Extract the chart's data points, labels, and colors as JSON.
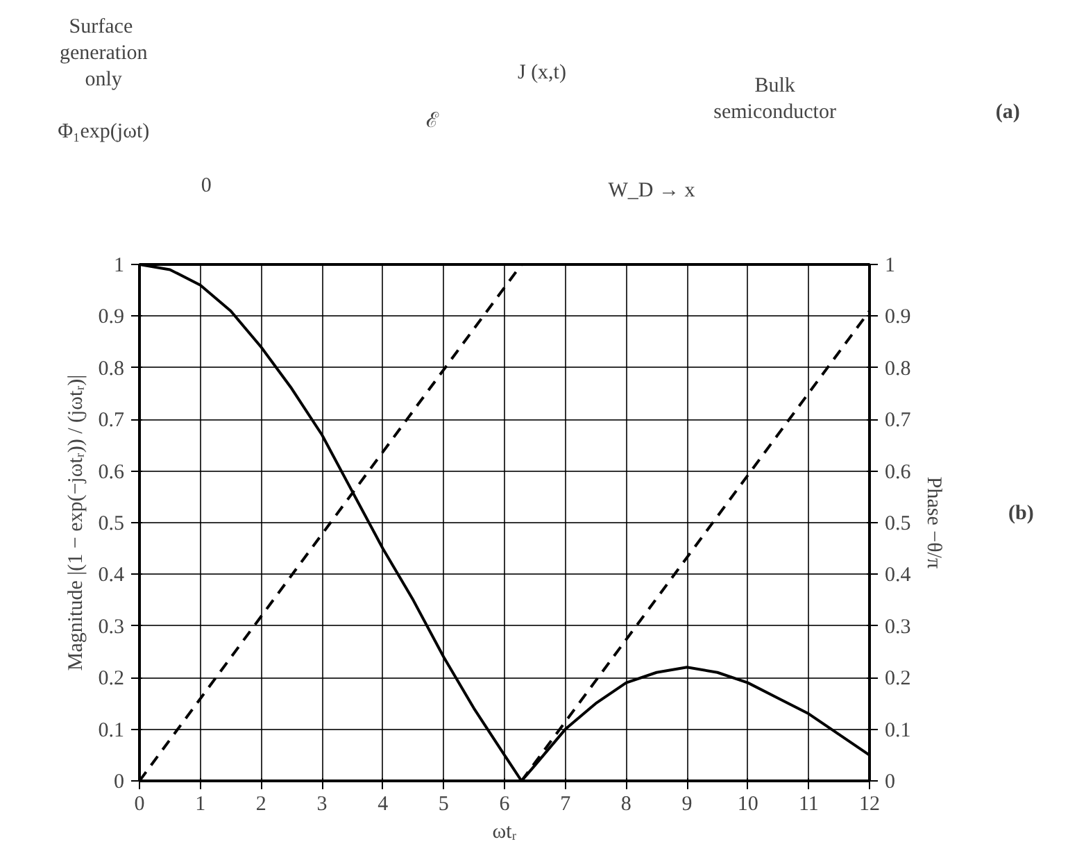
{
  "chart_data": [
    {
      "type": "other",
      "annotations": [
        "Surface generation only",
        "Φ₁exp(jωt)",
        "J (x,t)",
        "ℰ",
        "Bulk semiconductor",
        "0",
        "W_D → x",
        "(a)"
      ]
    },
    {
      "type": "line",
      "xlabel": "ωtᵣ",
      "ylabel": "Magnitude |(1 − exp(−jωtᵣ)) / (jωtᵣ)|",
      "y2label": "Phase −θ/π",
      "annotations": [
        "(b)"
      ],
      "xlim": [
        0,
        12
      ],
      "xticks": [
        0,
        1,
        2,
        3,
        4,
        5,
        6,
        7,
        8,
        9,
        10,
        11,
        12
      ],
      "ylim": [
        0,
        1
      ],
      "yticks": [
        0,
        0.1,
        0.2,
        0.3,
        0.4,
        0.5,
        0.6,
        0.7,
        0.8,
        0.9,
        1
      ],
      "y2lim": [
        0,
        1
      ],
      "y2ticks": [
        0,
        0.1,
        0.2,
        0.3,
        0.4,
        0.5,
        0.6,
        0.7,
        0.8,
        0.9,
        1
      ],
      "grid": true,
      "marker": "none",
      "series": [
        {
          "color": "#000000",
          "line_style": "solid",
          "x": [
            0,
            0.5,
            1,
            1.5,
            2,
            2.5,
            3,
            3.5,
            4,
            4.5,
            5,
            5.5,
            6,
            6.28,
            6.5,
            7,
            7.5,
            8,
            8.5,
            9,
            9.5,
            10,
            10.5,
            11,
            11.5,
            12
          ],
          "values": [
            1,
            0.99,
            0.96,
            0.91,
            0.84,
            0.76,
            0.67,
            0.56,
            0.45,
            0.35,
            0.24,
            0.14,
            0.05,
            0,
            0.03,
            0.1,
            0.15,
            0.19,
            0.21,
            0.22,
            0.21,
            0.19,
            0.16,
            0.13,
            0.09,
            0.05
          ]
        },
        {
          "color": "#000000",
          "line_style": "dashed",
          "x": [
            0,
            6.28
          ],
          "values": [
            0,
            1
          ]
        },
        {
          "color": "#000000",
          "line_style": "dashed",
          "x": [
            6.28,
            12
          ],
          "values": [
            0,
            0.91
          ]
        }
      ]
    }
  ]
}
